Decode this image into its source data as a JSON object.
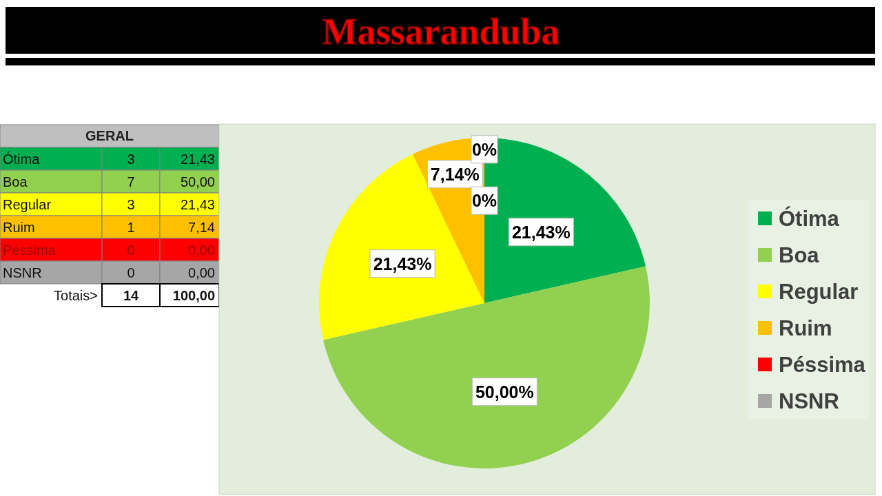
{
  "chart_data": [
    {
      "type": "other",
      "title": "GERAL",
      "annotations": [
        "Ótima",
        "3",
        "21,43",
        "Boa",
        "7",
        "50,00",
        "Regular",
        "3",
        "21,43",
        "Ruim",
        "1",
        "7,14",
        "Péssima",
        "0",
        "0,00",
        "NSNR",
        "0",
        "0,00",
        "Totais>",
        "14",
        "100,00"
      ]
    },
    {
      "type": "pie",
      "title": "Massaranduba",
      "categories": [
        "Ótima",
        "Boa",
        "Regular",
        "Ruim",
        "Péssima",
        "NSNR"
      ],
      "values": [
        21.43,
        50,
        21.43,
        7.14,
        0,
        0
      ],
      "colors": [
        "#00b050",
        "#92d050",
        "#ffff00",
        "#ffc000",
        "#ff0000",
        "#a6a6a6"
      ],
      "value_labels": [
        "21,43%",
        "50,00%",
        "21,43%",
        "7,14%",
        "0%",
        "0%"
      ],
      "legend": "right"
    }
  ]
}
